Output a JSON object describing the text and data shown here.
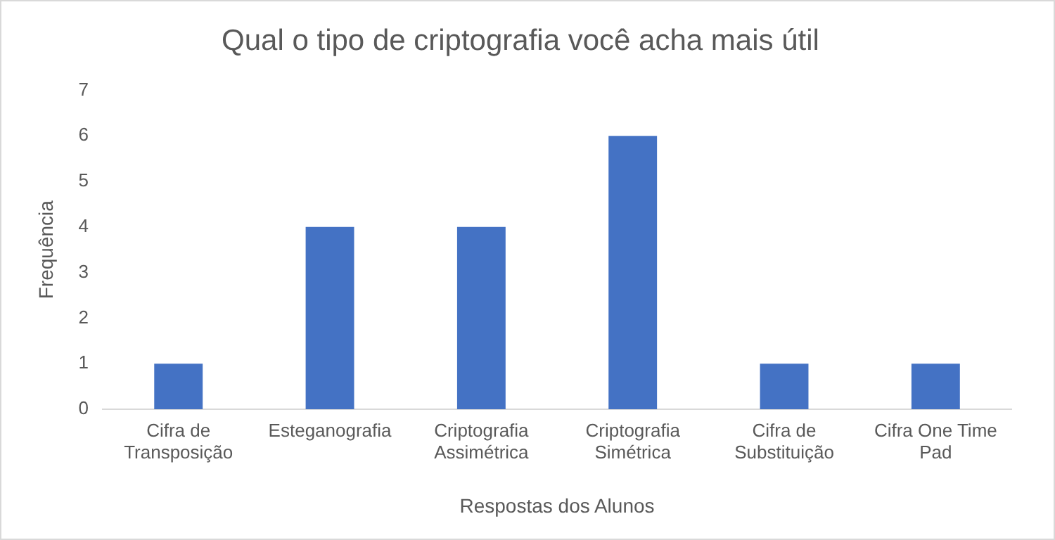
{
  "chart_data": {
    "type": "bar",
    "title": "Qual o tipo de criptografia você acha mais útil",
    "xlabel": "Respostas dos Alunos",
    "ylabel": "Frequência",
    "categories": [
      "Cifra de Transposição",
      "Esteganografia",
      "Criptografia Assimétrica",
      "Criptografia Simétrica",
      "Cifra de Substituição",
      "Cifra One Time Pad"
    ],
    "values": [
      1,
      4,
      4,
      6,
      1,
      1
    ],
    "color": "#4472c4",
    "ylim": [
      0,
      7
    ],
    "yticks": [
      0,
      1,
      2,
      3,
      4,
      5,
      6,
      7
    ],
    "grid": false,
    "legend": false
  }
}
